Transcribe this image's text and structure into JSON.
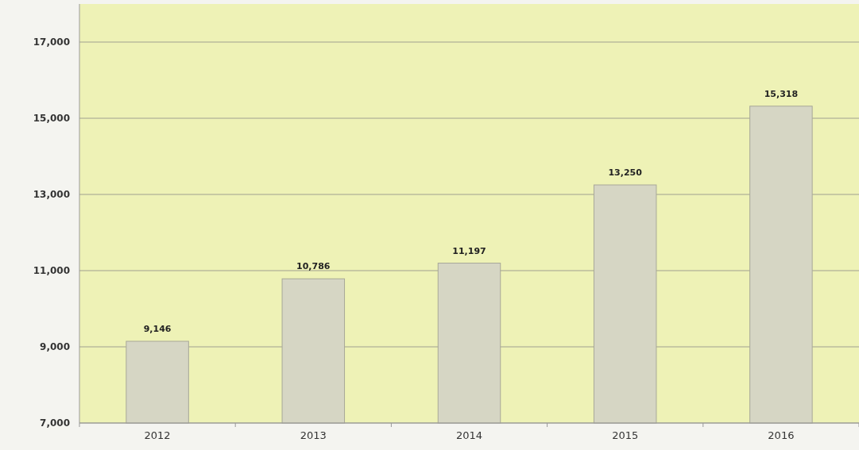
{
  "chart_data": {
    "type": "bar",
    "categories": [
      "2012",
      "2013",
      "2014",
      "2015",
      "2016"
    ],
    "values": [
      9146,
      10786,
      11197,
      13250,
      15318
    ],
    "value_labels": [
      "9,146",
      "10,786",
      "11,197",
      "13,250",
      "15,318"
    ],
    "color": "#d6d6c4",
    "ylim": [
      7000,
      18000
    ],
    "yticks": [
      {
        "value": 7000,
        "label": "7,000"
      },
      {
        "value": 9000,
        "label": "9,000"
      },
      {
        "value": 11000,
        "label": "11,000"
      },
      {
        "value": 13000,
        "label": "13,000"
      },
      {
        "value": 15000,
        "label": "15,000"
      },
      {
        "value": 17000,
        "label": "17,000"
      }
    ],
    "grid": "y"
  }
}
